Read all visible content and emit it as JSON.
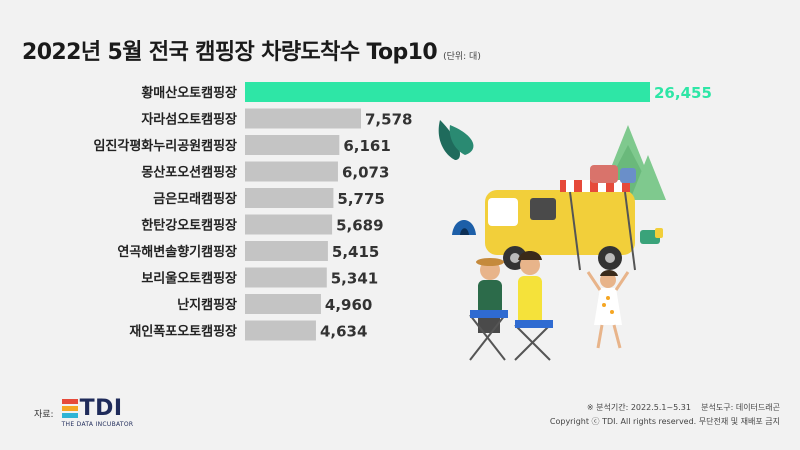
{
  "title": "2022년 5월 전국 캠핑장 차량도착수 Top10",
  "unit": "(단위: 대)",
  "chart_data": {
    "type": "bar",
    "orientation": "horizontal",
    "title": "2022년 5월 전국 캠핑장 차량도착수 Top10",
    "categories": [
      "황매산오토캠핑장",
      "자라섬오토캠핑장",
      "임진각평화누리공원캠핑장",
      "몽산포오션캠핑장",
      "금은모래캠핑장",
      "한탄강오토캠핑장",
      "연곡해변솔향기캠핑장",
      "보리울오토캠핑장",
      "난지캠핑장",
      "재인폭포오토캠핑장"
    ],
    "values": [
      26455,
      7578,
      6161,
      6073,
      5775,
      5689,
      5415,
      5341,
      4960,
      4634
    ],
    "value_labels": [
      "26,455",
      "7,578",
      "6,161",
      "6,073",
      "5,775",
      "5,689",
      "5,415",
      "5,341",
      "4,960",
      "4,634"
    ],
    "xlim": [
      0,
      26455
    ],
    "highlight_color": "#2ee6a6",
    "bar_color": "#c4c4c4",
    "grid": false
  },
  "footer": {
    "source_label": "자료:",
    "logo_text": "TDI",
    "logo_sub": "THE DATA INCUBATOR",
    "analysis_period": "※ 분석기간: 2022.5.1~5.31    분석도구: 데이터드래곤",
    "copyright": "Copyright ⓒ TDI. All rights reserved. 무단전재 및 재배포 금지"
  },
  "colors": {
    "background": "#f2f2f2",
    "logo_stripes": [
      "#e64a3a",
      "#f5a623",
      "#2fb5d6"
    ]
  }
}
